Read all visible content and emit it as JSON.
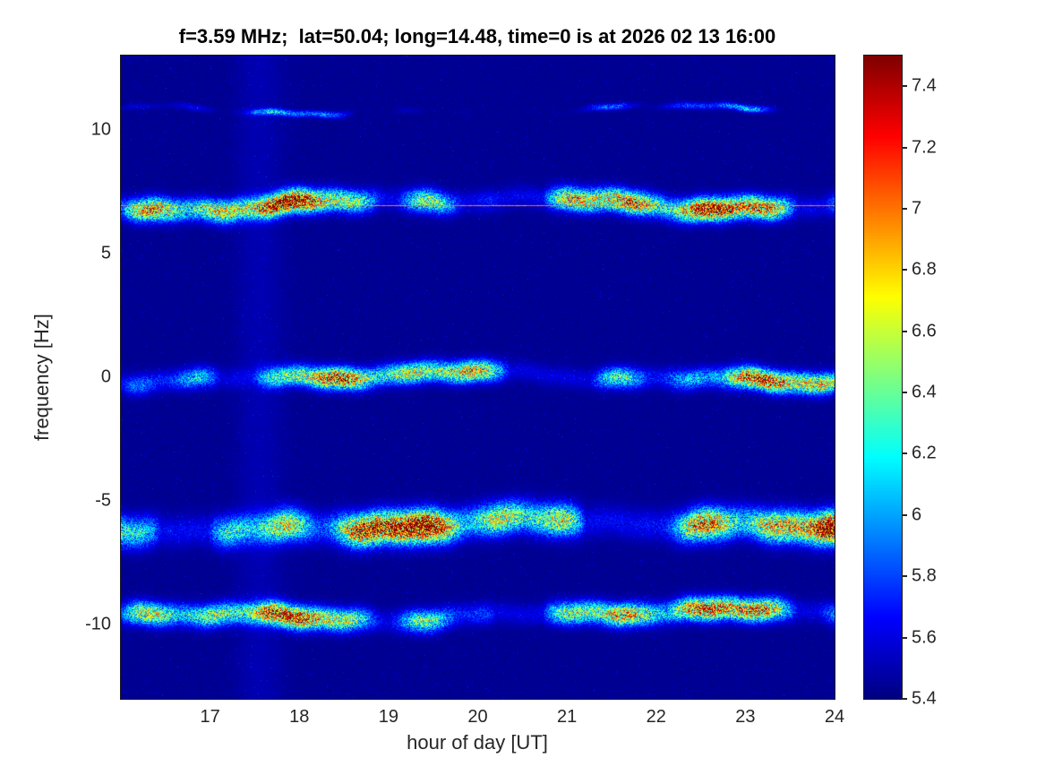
{
  "colors": {
    "background": "#ffffff",
    "title_text": "#000000",
    "axis_text": "#262626",
    "axis_line": "#1a1a1a"
  },
  "chart_data": {
    "type": "heatmap",
    "title": "f=3.59 MHz;  lat=50.04; long=14.48, time=0 is at 2026 02 13 16:00",
    "xlabel": "hour of day [UT]",
    "ylabel": "frequency [Hz]",
    "colormap": "jet",
    "x_range": [
      16,
      24
    ],
    "y_range": [
      -13,
      13
    ],
    "clim": [
      5.4,
      7.5
    ],
    "x_ticks": [
      17,
      18,
      19,
      20,
      21,
      22,
      23,
      24
    ],
    "y_ticks": [
      10,
      5,
      0,
      -5,
      -10
    ],
    "colorbar_ticks": [
      5.4,
      5.6,
      5.8,
      6,
      6.2,
      6.4,
      6.6,
      6.8,
      7,
      7.2,
      7.4
    ],
    "noise_floor": 5.41,
    "reference_line": {
      "freq": 6.95,
      "value": 6.85
    },
    "bands": [
      {
        "name": "faint-upper-trace",
        "center": 10.8,
        "width": 0.09,
        "amplitude": 0.9,
        "wiggle": 0.26,
        "patchy": true
      },
      {
        "name": "plus-7hz-band",
        "center": 7.0,
        "width": 0.3,
        "amplitude": 1.9,
        "wiggle": 0.4,
        "patchy": false
      },
      {
        "name": "zero-hz-band",
        "center": 0.0,
        "width": 0.28,
        "amplitude": 1.6,
        "wiggle": 0.34,
        "patchy": false
      },
      {
        "name": "minus-6hz-band",
        "center": -6.0,
        "width": 0.42,
        "amplitude": 2.1,
        "wiggle": 0.4,
        "patchy": false
      },
      {
        "name": "minus-9-6hz-band",
        "center": -9.6,
        "width": 0.3,
        "amplitude": 1.7,
        "wiggle": 0.34,
        "patchy": false
      }
    ]
  }
}
